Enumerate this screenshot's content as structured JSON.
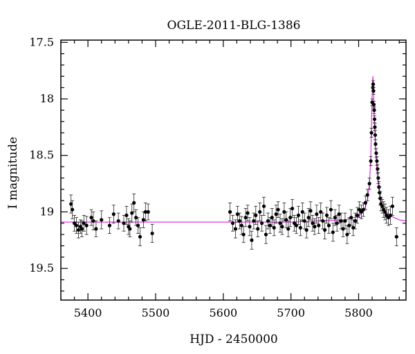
{
  "chart_data": {
    "type": "scatter",
    "title": "OGLE-2011-BLG-1386",
    "xlabel": "HJD - 2450000",
    "ylabel": "I magnitude",
    "xlim": [
      5360,
      5870
    ],
    "ylim": [
      19.78,
      17.48
    ],
    "y_inverted": true,
    "grid": false,
    "legend": "none",
    "xticks": [
      5400,
      5500,
      5600,
      5700,
      5800
    ],
    "yticks": [
      17.5,
      18,
      18.5,
      19,
      19.5
    ],
    "colors": {
      "data": "#000000",
      "model": "#e020e0"
    },
    "series": [
      {
        "type": "scatter_errorbar",
        "points": [
          [
            5375,
            18.93,
            0.08
          ],
          [
            5377,
            18.98,
            0.08
          ],
          [
            5380,
            19.1,
            0.07
          ],
          [
            5383,
            19.12,
            0.07
          ],
          [
            5386,
            19.16,
            0.07
          ],
          [
            5389,
            19.13,
            0.06
          ],
          [
            5391,
            19.15,
            0.07
          ],
          [
            5394,
            19.1,
            0.07
          ],
          [
            5398,
            19.12,
            0.08
          ],
          [
            5405,
            19.05,
            0.07
          ],
          [
            5408,
            19.08,
            0.08
          ],
          [
            5412,
            19.15,
            0.07
          ],
          [
            5420,
            19.07,
            0.08
          ],
          [
            5432,
            19.12,
            0.07
          ],
          [
            5438,
            19.02,
            0.08
          ],
          [
            5445,
            19.08,
            0.07
          ],
          [
            5453,
            19.1,
            0.07
          ],
          [
            5457,
            19.03,
            0.08
          ],
          [
            5460,
            19.13,
            0.07
          ],
          [
            5462,
            19.15,
            0.07
          ],
          [
            5465,
            19.01,
            0.08
          ],
          [
            5468,
            18.92,
            0.08
          ],
          [
            5471,
            19.05,
            0.07
          ],
          [
            5474,
            19.12,
            0.07
          ],
          [
            5477,
            19.22,
            0.08
          ],
          [
            5482,
            19.07,
            0.07
          ],
          [
            5485,
            19.0,
            0.08
          ],
          [
            5489,
            19.0,
            0.07
          ],
          [
            5495,
            19.19,
            0.08
          ],
          [
            5610,
            19.0,
            0.08
          ],
          [
            5614,
            19.1,
            0.07
          ],
          [
            5618,
            19.15,
            0.08
          ],
          [
            5621,
            19.02,
            0.07
          ],
          [
            5624,
            19.08,
            0.07
          ],
          [
            5627,
            19.12,
            0.08
          ],
          [
            5630,
            19.2,
            0.07
          ],
          [
            5633,
            19.05,
            0.08
          ],
          [
            5636,
            19.01,
            0.07
          ],
          [
            5639,
            19.13,
            0.08
          ],
          [
            5642,
            19.25,
            0.08
          ],
          [
            5645,
            19.08,
            0.07
          ],
          [
            5648,
            19.03,
            0.08
          ],
          [
            5651,
            19.15,
            0.07
          ],
          [
            5654,
            19.0,
            0.08
          ],
          [
            5657,
            19.1,
            0.07
          ],
          [
            5660,
            18.95,
            0.08
          ],
          [
            5663,
            19.2,
            0.08
          ],
          [
            5666,
            19.08,
            0.07
          ],
          [
            5669,
            19.12,
            0.07
          ],
          [
            5672,
            19.05,
            0.08
          ],
          [
            5675,
            19.14,
            0.07
          ],
          [
            5678,
            19.02,
            0.08
          ],
          [
            5681,
            18.98,
            0.07
          ],
          [
            5684,
            19.1,
            0.08
          ],
          [
            5687,
            19.13,
            0.07
          ],
          [
            5690,
            19.0,
            0.08
          ],
          [
            5693,
            19.07,
            0.07
          ],
          [
            5696,
            19.15,
            0.07
          ],
          [
            5699,
            19.05,
            0.08
          ],
          [
            5702,
            18.97,
            0.08
          ],
          [
            5705,
            19.1,
            0.07
          ],
          [
            5708,
            19.12,
            0.07
          ],
          [
            5711,
            19.03,
            0.08
          ],
          [
            5714,
            19.14,
            0.07
          ],
          [
            5717,
            19.0,
            0.08
          ],
          [
            5720,
            19.08,
            0.07
          ],
          [
            5723,
            19.16,
            0.07
          ],
          [
            5726,
            19.05,
            0.08
          ],
          [
            5729,
            18.99,
            0.08
          ],
          [
            5732,
            19.1,
            0.07
          ],
          [
            5735,
            19.13,
            0.07
          ],
          [
            5738,
            19.02,
            0.08
          ],
          [
            5741,
            19.12,
            0.07
          ],
          [
            5744,
            19.0,
            0.08
          ],
          [
            5747,
            19.08,
            0.07
          ],
          [
            5750,
            19.16,
            0.08
          ],
          [
            5753,
            19.03,
            0.07
          ],
          [
            5756,
            19.12,
            0.07
          ],
          [
            5759,
            18.98,
            0.08
          ],
          [
            5762,
            19.18,
            0.08
          ],
          [
            5765,
            19.05,
            0.07
          ],
          [
            5768,
            19.1,
            0.07
          ],
          [
            5771,
            19.02,
            0.08
          ],
          [
            5774,
            19.08,
            0.07
          ],
          [
            5777,
            19.15,
            0.07
          ],
          [
            5780,
            19.08,
            0.07
          ],
          [
            5783,
            19.2,
            0.08
          ],
          [
            5786,
            19.12,
            0.07
          ],
          [
            5789,
            19.05,
            0.07
          ],
          [
            5792,
            19.14,
            0.07
          ],
          [
            5795,
            19.08,
            0.07
          ],
          [
            5798,
            19.03,
            0.07
          ],
          [
            5801,
            18.98,
            0.07
          ],
          [
            5804,
            19.0,
            0.06
          ],
          [
            5807,
            18.98,
            0.06
          ],
          [
            5810,
            18.92,
            0.06
          ],
          [
            5813,
            18.85,
            0.05
          ],
          [
            5816,
            18.75,
            0.05
          ],
          [
            5818,
            18.55,
            0.04
          ],
          [
            5819,
            18.3,
            0.04
          ],
          [
            5820,
            18.03,
            0.03
          ],
          [
            5821,
            17.9,
            0.03
          ],
          [
            5821.5,
            17.87,
            0.03
          ],
          [
            5822,
            17.93,
            0.03
          ],
          [
            5822.5,
            18.05,
            0.03
          ],
          [
            5823,
            18.1,
            0.03
          ],
          [
            5823.5,
            18.18,
            0.03
          ],
          [
            5824,
            18.25,
            0.03
          ],
          [
            5824.5,
            18.32,
            0.04
          ],
          [
            5825,
            18.4,
            0.04
          ],
          [
            5826,
            18.48,
            0.04
          ],
          [
            5827,
            18.55,
            0.04
          ],
          [
            5828,
            18.62,
            0.04
          ],
          [
            5829,
            18.7,
            0.05
          ],
          [
            5830,
            18.78,
            0.05
          ],
          [
            5831,
            18.83,
            0.05
          ],
          [
            5832,
            18.88,
            0.06
          ],
          [
            5833,
            18.93,
            0.06
          ],
          [
            5835,
            18.95,
            0.06
          ],
          [
            5837,
            18.98,
            0.07
          ],
          [
            5839,
            19.0,
            0.07
          ],
          [
            5841,
            19.03,
            0.07
          ],
          [
            5844,
            19.05,
            0.07
          ],
          [
            5847,
            19.03,
            0.08
          ],
          [
            5850,
            18.95,
            0.08
          ],
          [
            5856,
            19.22,
            0.08
          ]
        ]
      },
      {
        "type": "model_line",
        "x": [
          5360,
          5700,
          5780,
          5800,
          5808,
          5813,
          5816,
          5818,
          5819.5,
          5820.5,
          5821.2,
          5822,
          5823,
          5825,
          5828,
          5832,
          5838,
          5845,
          5860,
          5870
        ],
        "y": [
          19.09,
          19.09,
          19.07,
          19.04,
          18.99,
          18.9,
          18.75,
          18.5,
          18.1,
          17.85,
          17.8,
          17.92,
          18.15,
          18.45,
          18.7,
          18.88,
          18.98,
          19.03,
          19.07,
          19.08
        ]
      }
    ]
  }
}
